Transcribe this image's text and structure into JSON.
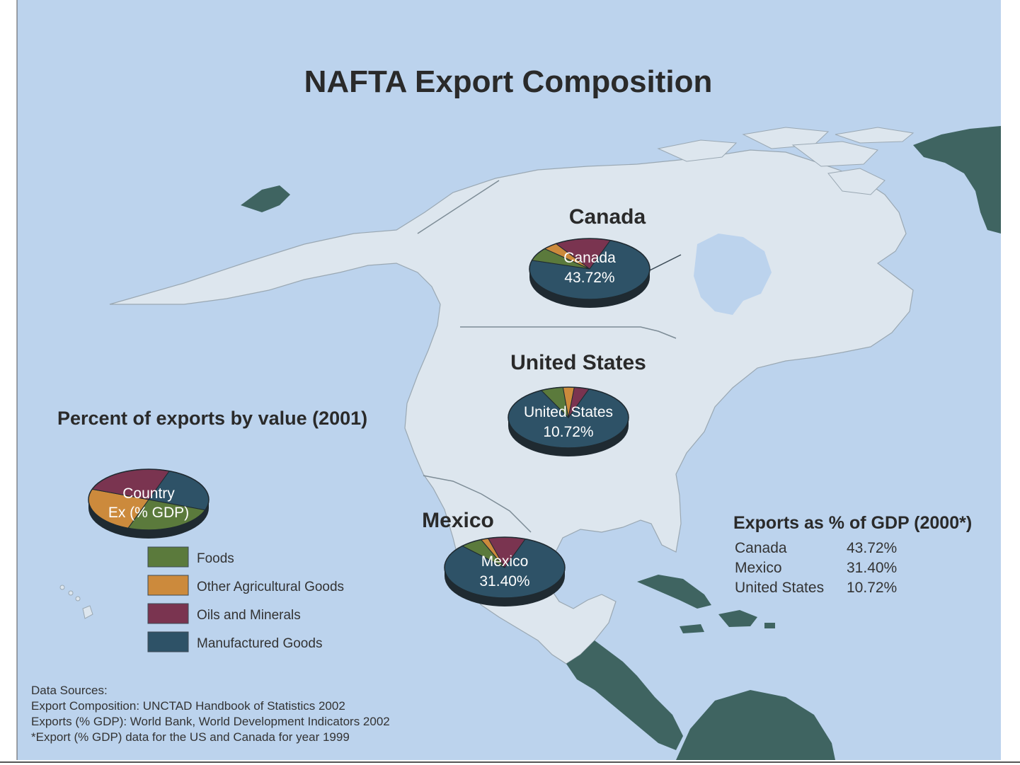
{
  "title": "NAFTA Export Composition",
  "colors": {
    "ocean": "#bcd3ed",
    "land_nafta": "#dde6ee",
    "land_other": "#3f6461",
    "border_line": "#7d8c96",
    "foods": "#5b7a3c",
    "other_agri": "#cc8a3c",
    "oils": "#7a3450",
    "manufactured": "#2e5267",
    "pie_shadow": "#1f2a31"
  },
  "legend": {
    "heading": "Percent of exports by value (2001)",
    "key_line1": "Country",
    "key_line2": "Ex (% GDP)",
    "items": [
      {
        "label": "Foods",
        "color_key": "foods"
      },
      {
        "label": "Other Agricultural Goods",
        "color_key": "other_agri"
      },
      {
        "label": "Oils and Minerals",
        "color_key": "oils"
      },
      {
        "label": "Manufactured Goods",
        "color_key": "manufactured"
      }
    ]
  },
  "countries": {
    "canada": {
      "heading": "Canada",
      "pie_name": "Canada",
      "pie_value": "43.72%",
      "shares": {
        "manufactured": 0.74,
        "foods": 0.07,
        "other_agri": 0.04,
        "oils": 0.15
      }
    },
    "united_states": {
      "heading": "United States",
      "pie_name": "United States",
      "pie_value": "10.72%",
      "shares": {
        "manufactured": 0.87,
        "foods": 0.06,
        "other_agri": 0.03,
        "oils": 0.04
      }
    },
    "mexico": {
      "heading": "Mexico",
      "pie_name": "Mexico",
      "pie_value": "31.40%",
      "shares": {
        "manufactured": 0.82,
        "foods": 0.06,
        "other_agri": 0.02,
        "oils": 0.1
      }
    }
  },
  "gdp_table": {
    "heading": "Exports as % of GDP (2000*)",
    "rows": [
      {
        "country": "Canada",
        "value": "43.72%"
      },
      {
        "country": "Mexico",
        "value": "31.40%"
      },
      {
        "country": "United States",
        "value": "10.72%"
      }
    ]
  },
  "sources": {
    "line1": "Data Sources:",
    "line2": "Export Composition: UNCTAD Handbook of Statistics 2002",
    "line3": "Exports (% GDP): World Bank, World Development Indicators 2002",
    "line4": "*Export (% GDP) data for the US and Canada for year 1999"
  }
}
